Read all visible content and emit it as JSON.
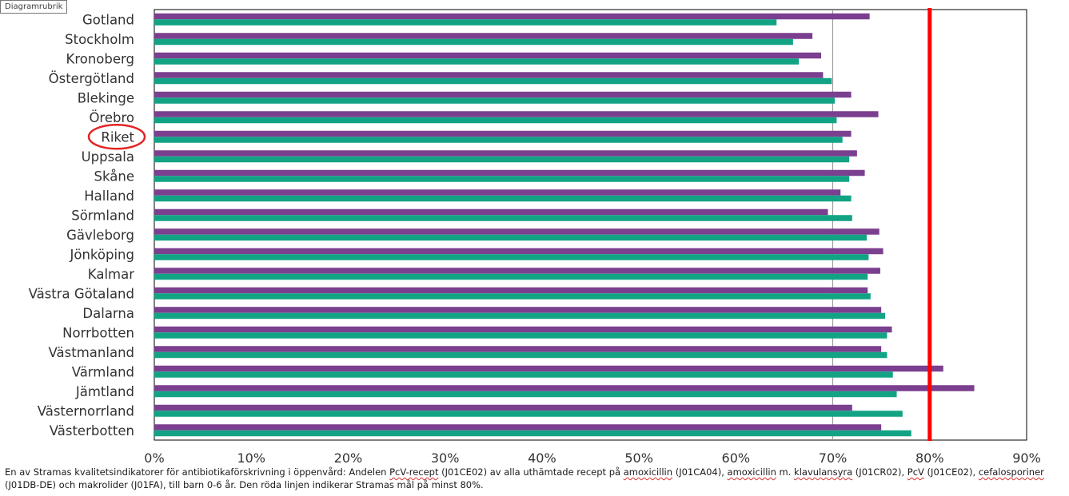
{
  "tooltip": "Diagramrubrik",
  "colors": {
    "series1": "#7b3f8f",
    "series2": "#12a385",
    "target_line": "#ff0000",
    "highlight_circle": "#e22424",
    "plot_border": "#000000",
    "grid": "#909090"
  },
  "chart_data": {
    "type": "bar",
    "orientation": "horizontal",
    "highlighted_category": "Riket",
    "categories": [
      "Gotland",
      "Stockholm",
      "Kronoberg",
      "Östergötland",
      "Blekinge",
      "Örebro",
      "Riket",
      "Uppsala",
      "Skåne",
      "Halland",
      "Sörmland",
      "Gävleborg",
      "Jönköping",
      "Kalmar",
      "Västra Götaland",
      "Dalarna",
      "Norrbotten",
      "Västmanland",
      "Värmland",
      "Jämtland",
      "Västernorrland",
      "Västerbotten"
    ],
    "series": [
      {
        "values": [
          73.8,
          67.9,
          68.8,
          69.0,
          71.9,
          74.7,
          71.9,
          72.5,
          73.3,
          70.8,
          69.5,
          74.8,
          75.2,
          74.9,
          73.6,
          75.0,
          76.1,
          75.0,
          81.4,
          84.6,
          72.0,
          75.0
        ]
      },
      {
        "values": [
          64.2,
          65.9,
          66.5,
          69.9,
          70.2,
          70.4,
          71.0,
          71.7,
          71.7,
          71.9,
          72.0,
          73.5,
          73.7,
          73.6,
          73.9,
          75.4,
          75.6,
          75.6,
          76.2,
          76.6,
          77.2,
          78.1
        ]
      }
    ],
    "xlim": [
      0,
      90
    ],
    "xticks": [
      {
        "value": 0,
        "label": "0%"
      },
      {
        "value": 10,
        "label": "10%"
      },
      {
        "value": 20,
        "label": "20%"
      },
      {
        "value": 30,
        "label": "30%"
      },
      {
        "value": 40,
        "label": "40%"
      },
      {
        "value": 50,
        "label": "50%"
      },
      {
        "value": 60,
        "label": "60%"
      },
      {
        "value": 70,
        "label": "70%"
      },
      {
        "value": 80,
        "label": "80%"
      },
      {
        "value": 90,
        "label": "90%"
      }
    ],
    "gridlines": [
      70
    ],
    "target_value": 80
  },
  "caption": {
    "t1": "En av Stramas kvalitetsindikatorer för antibiotikaförskrivning i öppenvård: Andelen ",
    "s1": "PcV-recept",
    "t2": " (J01CE02) av alla uthämtade recept på ",
    "s2": "amoxicillin",
    "t3": " (J01CA04), ",
    "s3": "amoxicillin",
    "t4": " m. ",
    "s4": "klavulansyra",
    "t5": " (J01CR02), ",
    "s5": "PcV",
    "t6": " (J01CE02), ",
    "s6": "cefalosporiner",
    "t7": " (J01DB-DE) och makrolider (J01FA), till barn 0-6 år. Den röda linjen indikerar Stramas mål på minst 80%."
  }
}
